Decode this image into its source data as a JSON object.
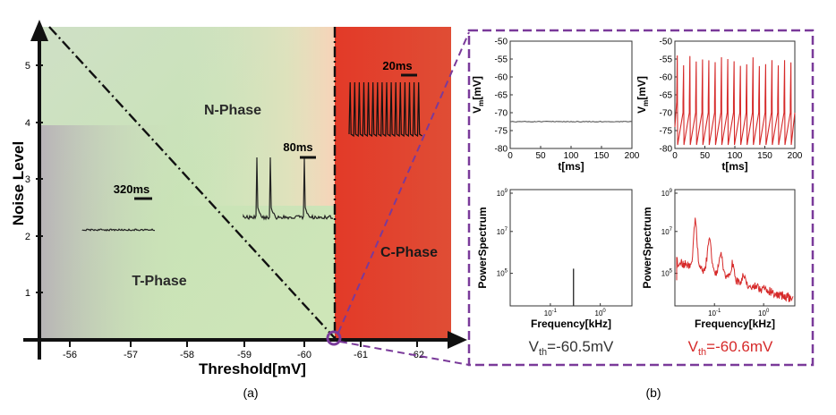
{
  "panel_a": {
    "caption": "(a)",
    "xlabel": "Threshold[mV]",
    "ylabel": "Noise Level",
    "x_ticks": [
      "-56",
      "-57",
      "-58",
      "-59",
      "-60",
      "-61",
      "-62"
    ],
    "y_ticks": [
      "1",
      "2",
      "3",
      "4",
      "5"
    ],
    "phases": {
      "t": "T-Phase",
      "n": "N-Phase",
      "c": "C-Phase"
    },
    "scalebars": {
      "t": "320ms",
      "n": "80ms",
      "c": "20ms"
    },
    "colors": {
      "c_phase": "#e03a2a",
      "n_phase": "#cfe6b8",
      "t_phase": "#b9b1b8"
    }
  },
  "panel_b": {
    "caption": "(b)",
    "left": {
      "v_label": "V",
      "v_sub": "th",
      "v_value": "=-60.5mV",
      "color": "#333333"
    },
    "right": {
      "v_label": "V",
      "v_sub": "th",
      "v_value": "=-60.6mV",
      "color": "#d62a2a"
    },
    "trace_ylabel_main": "V",
    "trace_ylabel_sub": "m",
    "trace_ylabel_unit": "[mV]",
    "trace_xlabel": "t[ms]",
    "trace_yticks": [
      "-50",
      "-55",
      "-60",
      "-65",
      "-70",
      "-75",
      "-80"
    ],
    "trace_xticks": [
      "0",
      "50",
      "100",
      "150",
      "200"
    ],
    "ps_ylabel": "PowerSpectrum",
    "ps_xlabel": "Frequency[kHz]",
    "ps_yticks": [
      {
        "base": "10",
        "exp": "9"
      },
      {
        "base": "10",
        "exp": "7"
      },
      {
        "base": "10",
        "exp": "5"
      }
    ],
    "ps_xticks": [
      {
        "base": "10",
        "exp": "-1"
      },
      {
        "base": "10",
        "exp": "0"
      }
    ],
    "border_color": "#7a3a9a"
  },
  "chart_data": [
    {
      "type": "area",
      "title": "",
      "xlabel": "Threshold[mV]",
      "ylabel": "Noise Level",
      "x_ticks": [
        -56,
        -57,
        -58,
        -59,
        -60,
        -61,
        -62
      ],
      "y_ticks": [
        1,
        2,
        3,
        4,
        5
      ],
      "regions": [
        "T-Phase",
        "N-Phase",
        "C-Phase"
      ],
      "boundaries": {
        "vertical_threshold_mV": -60.55,
        "diagonal": "from Noise ~5.5 at -55.8mV down to Noise 0 at -60.55mV"
      },
      "scalebars": [
        "320ms",
        "80ms",
        "20ms"
      ]
    },
    {
      "type": "line",
      "xlabel": "t[ms]",
      "ylabel": "Vm[mV]",
      "xlim": [
        0,
        200
      ],
      "ylim": [
        -80,
        -50
      ],
      "series": [
        {
          "name": "",
          "values": [
            -72.5,
            -72.5
          ],
          "x": [
            0,
            200
          ]
        }
      ]
    },
    {
      "type": "line",
      "xlabel": "t[ms]",
      "ylabel": "Vm[mV]",
      "xlim": [
        0,
        200
      ],
      "ylim": [
        -80,
        -50
      ],
      "series": [
        {
          "name": "",
          "spike_count": 19,
          "spike_peak": -54,
          "trough": -79
        }
      ]
    },
    {
      "type": "line",
      "xlabel": "Frequency[kHz]",
      "ylabel": "PowerSpectrum",
      "y_scale": "log",
      "x_scale": "log",
      "series": [
        {
          "name": "",
          "single_peak_x": 0.4
        }
      ]
    },
    {
      "type": "line",
      "xlabel": "Frequency[kHz]",
      "ylabel": "PowerSpectrum",
      "y_scale": "log",
      "x_scale": "log",
      "series": [
        {
          "name": "",
          "peaks_x": [
            0.1,
            0.2,
            0.3
          ]
        }
      ]
    }
  ]
}
